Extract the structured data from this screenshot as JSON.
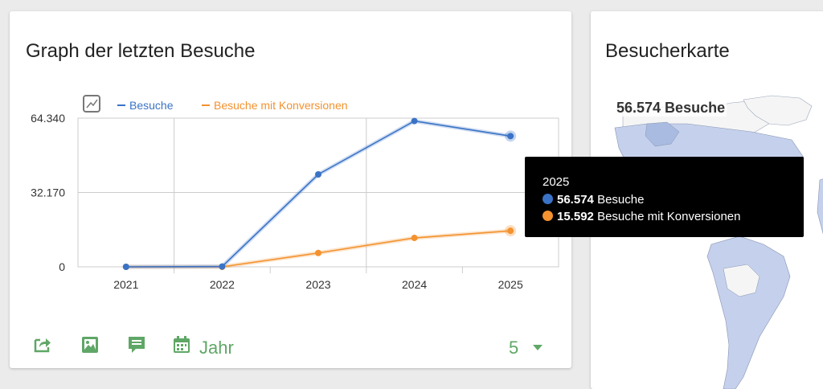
{
  "visits_widget": {
    "title": "Graph der letzten Besuche",
    "period_label": "Jahr",
    "limit_value": "5",
    "footer_icons": [
      "export-icon",
      "image-icon",
      "annotation-icon",
      "calendar-icon"
    ]
  },
  "map_widget": {
    "title": "Besucherkarte",
    "region_label": "56.574 Besuche"
  },
  "tooltip": {
    "title": "2025",
    "rows": [
      {
        "value": "56.574",
        "label": "Besuche",
        "color": "#3a73c6"
      },
      {
        "value": "15.592",
        "label": "Besuche mit Konversionen",
        "color": "#f3922f"
      }
    ]
  },
  "chart_data": {
    "type": "line",
    "categories": [
      "2021",
      "2022",
      "2023",
      "2024",
      "2025"
    ],
    "series": [
      {
        "name": "Besuche",
        "color": "#3a73c6",
        "values": [
          0,
          150,
          40000,
          63100,
          56574
        ]
      },
      {
        "name": "Besuche mit Konversionen",
        "color": "#f3922f",
        "values": [
          0,
          0,
          6000,
          12500,
          15592
        ]
      }
    ],
    "ylim": [
      0,
      64340
    ],
    "yticks": [
      "0",
      "32.170",
      "64.340"
    ],
    "legend": "top-left",
    "grid": true
  },
  "colors": {
    "accent": "#5fa766",
    "map_fill": "#c5d1ec",
    "map_fill_dark": "#a9bbe0"
  }
}
